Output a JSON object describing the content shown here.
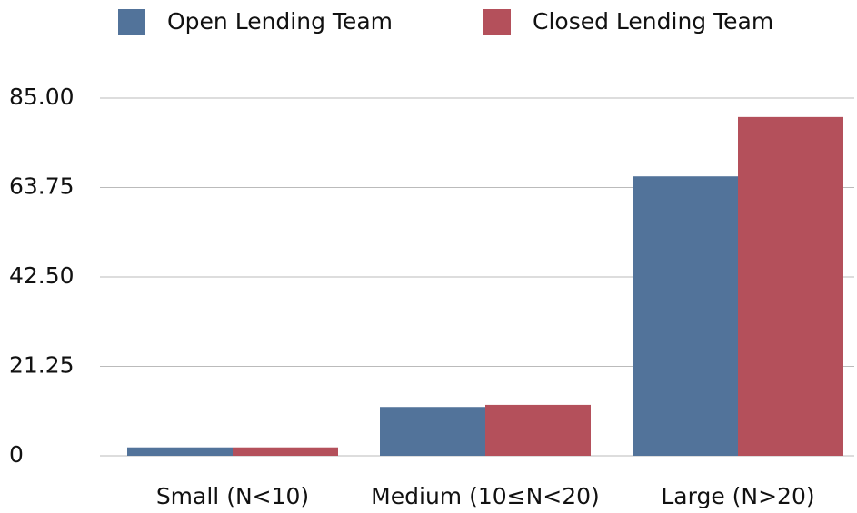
{
  "chart_data": {
    "type": "bar",
    "categories": [
      "Small (N<10)",
      "Medium (10≤N<20)",
      "Large (N>20)"
    ],
    "series": [
      {
        "name": "Open Lending Team",
        "color": "#52739a",
        "values": [
          2,
          11.6,
          66.4
        ]
      },
      {
        "name": "Closed Lending Team",
        "color": "#b4505b",
        "values": [
          2,
          12.1,
          80.5
        ]
      }
    ],
    "ylim": [
      0,
      85
    ],
    "yticks": [
      0,
      21.25,
      {
        "value": 42.5,
        "label": "42.50"
      },
      63.75,
      {
        "value": 85,
        "label": "85.00"
      }
    ],
    "grid": true,
    "legend": "top"
  }
}
